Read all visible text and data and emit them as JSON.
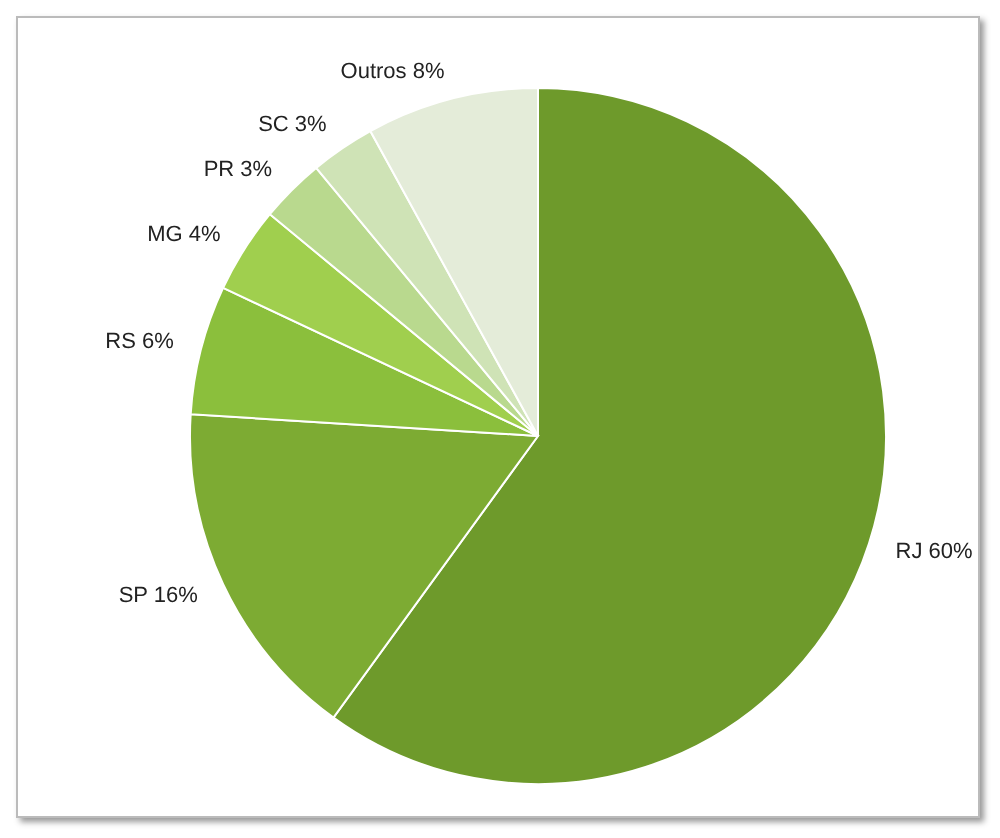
{
  "chart_data": {
    "type": "pie",
    "categories": [
      "RJ",
      "SP",
      "RS",
      "MG",
      "PR",
      "SC",
      "Outros"
    ],
    "values": [
      60,
      16,
      6,
      4,
      3,
      3,
      8
    ],
    "value_labels": [
      "60%",
      "16%",
      "6%",
      "4%",
      "3%",
      "3%",
      "8%"
    ],
    "colors": [
      "#6e9a2b",
      "#7dab33",
      "#8bbf3c",
      "#a0cf4e",
      "#b9d98e",
      "#cfe3b6",
      "#e4ecd9"
    ],
    "legend": false
  }
}
